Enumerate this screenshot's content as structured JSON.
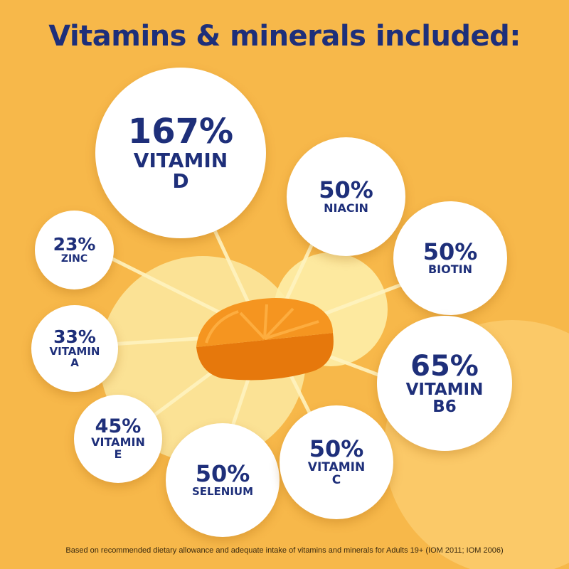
{
  "title": "Vitamins & minerals included:",
  "footnote": "Based on recommended dietary allowance and adequate intake of vitamins and minerals for Adults 19+ (IOM 2011; IOM 2006)",
  "nutrients": {
    "vitamin_d": {
      "percent": "167%",
      "label": "VITAMIN\nD"
    },
    "niacin": {
      "percent": "50%",
      "label": "NIACIN"
    },
    "zinc": {
      "percent": "23%",
      "label": "ZINC"
    },
    "biotin": {
      "percent": "50%",
      "label": "BIOTIN"
    },
    "vitamin_a": {
      "percent": "33%",
      "label": "VITAMIN\nA"
    },
    "vitamin_b6": {
      "percent": "65%",
      "label": "VITAMIN\nB6"
    },
    "vitamin_e": {
      "percent": "45%",
      "label": "VITAMIN\nE"
    },
    "selenium": {
      "percent": "50%",
      "label": "SELENIUM"
    },
    "vitamin_c": {
      "percent": "50%",
      "label": "VITAMIN\nC"
    }
  },
  "colors": {
    "background": "#f7b84a",
    "text_navy": "#1e2f7a",
    "circle_fill": "#ffffff",
    "gummy_orange": "#f28a14"
  }
}
